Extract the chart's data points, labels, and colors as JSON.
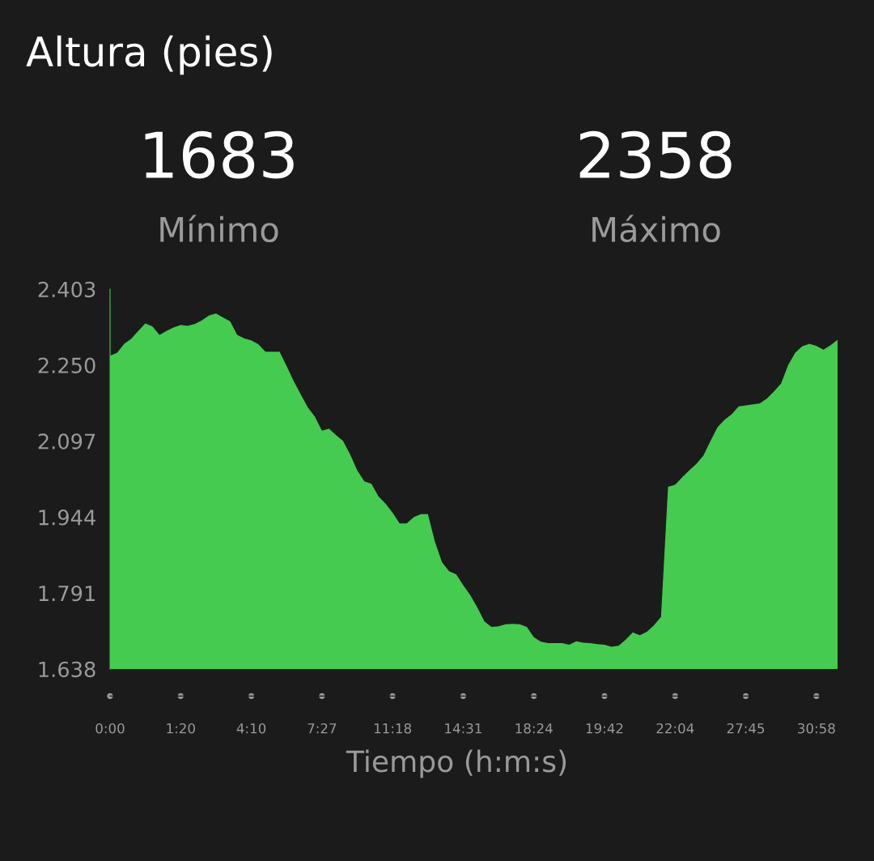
{
  "chart_data": {
    "type": "area",
    "title": "Altura (pies)",
    "xlabel": "Tiempo (h:m:s)",
    "annotations": [
      "1683",
      "Mínimo",
      "2358",
      "Máximo"
    ],
    "categories": [
      "0:00",
      null,
      null,
      null,
      null,
      null,
      null,
      null,
      null,
      null,
      "1:20",
      null,
      null,
      null,
      null,
      null,
      null,
      null,
      null,
      null,
      "4:10",
      null,
      null,
      null,
      null,
      null,
      null,
      null,
      null,
      null,
      "7:27",
      null,
      null,
      null,
      null,
      null,
      null,
      null,
      null,
      null,
      "11:18",
      null,
      null,
      null,
      null,
      null,
      null,
      null,
      null,
      null,
      "14:31",
      null,
      null,
      null,
      null,
      null,
      null,
      null,
      null,
      null,
      "18:24",
      null,
      null,
      null,
      null,
      null,
      null,
      null,
      null,
      null,
      "19:42",
      null,
      null,
      null,
      null,
      null,
      null,
      null,
      null,
      null,
      "22:04",
      null,
      null,
      null,
      null,
      null,
      null,
      null,
      null,
      null,
      "27:45",
      null,
      null,
      null,
      null,
      null,
      null,
      null,
      null,
      null,
      "30:58",
      null,
      null,
      null
    ],
    "series": [
      {
        "color": "#44cb50",
        "values": [
          2269,
          2275,
          2293,
          2303,
          2319,
          2334,
          2328,
          2311,
          2319,
          2326,
          2331,
          2329,
          2333,
          2340,
          2350,
          2354,
          2346,
          2338,
          2311,
          2304,
          2300,
          2292,
          2277,
          2277,
          2277,
          2248,
          2218,
          2191,
          2165,
          2146,
          2118,
          2122,
          2109,
          2097,
          2070,
          2038,
          2016,
          2011,
          1986,
          1971,
          1953,
          1931,
          1931,
          1944,
          1950,
          1950,
          1894,
          1853,
          1835,
          1829,
          1807,
          1787,
          1762,
          1734,
          1723,
          1724,
          1728,
          1729,
          1728,
          1723,
          1702,
          1693,
          1690,
          1690,
          1690,
          1687,
          1694,
          1691,
          1690,
          1688,
          1687,
          1683,
          1685,
          1697,
          1712,
          1706,
          1713,
          1726,
          1743,
          2005,
          2009,
          2024,
          2038,
          2051,
          2068,
          2097,
          2125,
          2140,
          2151,
          2167,
          2169,
          2171,
          2173,
          2183,
          2197,
          2213,
          2250,
          2275,
          2288,
          2293,
          2289,
          2281,
          2290,
          2301
        ]
      }
    ],
    "ylim": [
      1638,
      2403
    ],
    "yticks": [
      {
        "value": 1638,
        "label": "1.638"
      },
      {
        "value": 1791,
        "label": "1.791"
      },
      {
        "value": 1944,
        "label": "1.944"
      },
      {
        "value": 2097,
        "label": "2.097"
      },
      {
        "value": 2250,
        "label": "2.250"
      },
      {
        "value": 2403,
        "label": "2.403"
      }
    ],
    "grid": false,
    "legend": false
  }
}
